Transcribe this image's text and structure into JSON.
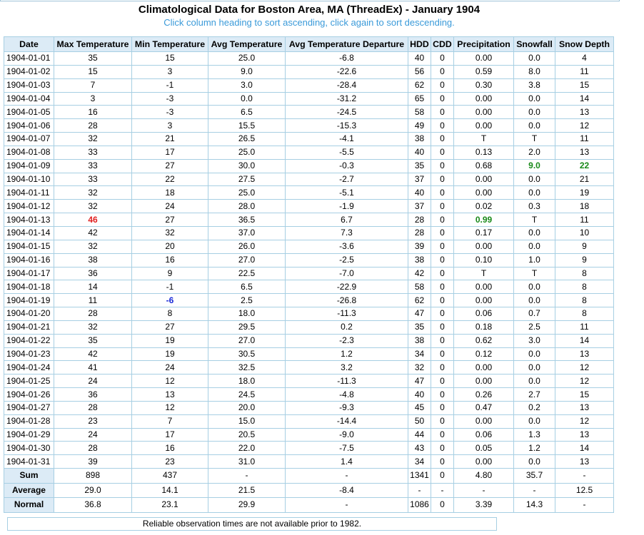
{
  "title": "Climatological Data for Boston Area, MA (ThreadEx) - January 1904",
  "subtitle": "Click column heading to sort ascending, click again to sort descending.",
  "columns": [
    "Date",
    "Max Temperature",
    "Min Temperature",
    "Avg Temperature",
    "Avg Temperature Departure",
    "HDD",
    "CDD",
    "Precipitation",
    "Snowfall",
    "Snow Depth"
  ],
  "rows": [
    [
      "1904-01-01",
      "35",
      "15",
      "25.0",
      "-6.8",
      "40",
      "0",
      "0.00",
      "0.0",
      "4"
    ],
    [
      "1904-01-02",
      "15",
      "3",
      "9.0",
      "-22.6",
      "56",
      "0",
      "0.59",
      "8.0",
      "11"
    ],
    [
      "1904-01-03",
      "7",
      "-1",
      "3.0",
      "-28.4",
      "62",
      "0",
      "0.30",
      "3.8",
      "15"
    ],
    [
      "1904-01-04",
      "3",
      "-3",
      "0.0",
      "-31.2",
      "65",
      "0",
      "0.00",
      "0.0",
      "14"
    ],
    [
      "1904-01-05",
      "16",
      "-3",
      "6.5",
      "-24.5",
      "58",
      "0",
      "0.00",
      "0.0",
      "13"
    ],
    [
      "1904-01-06",
      "28",
      "3",
      "15.5",
      "-15.3",
      "49",
      "0",
      "0.00",
      "0.0",
      "12"
    ],
    [
      "1904-01-07",
      "32",
      "21",
      "26.5",
      "-4.1",
      "38",
      "0",
      "T",
      "T",
      "11"
    ],
    [
      "1904-01-08",
      "33",
      "17",
      "25.0",
      "-5.5",
      "40",
      "0",
      "0.13",
      "2.0",
      "13"
    ],
    [
      "1904-01-09",
      "33",
      "27",
      "30.0",
      "-0.3",
      "35",
      "0",
      "0.68",
      "9.0",
      "22"
    ],
    [
      "1904-01-10",
      "33",
      "22",
      "27.5",
      "-2.7",
      "37",
      "0",
      "0.00",
      "0.0",
      "21"
    ],
    [
      "1904-01-11",
      "32",
      "18",
      "25.0",
      "-5.1",
      "40",
      "0",
      "0.00",
      "0.0",
      "19"
    ],
    [
      "1904-01-12",
      "32",
      "24",
      "28.0",
      "-1.9",
      "37",
      "0",
      "0.02",
      "0.3",
      "18"
    ],
    [
      "1904-01-13",
      "46",
      "27",
      "36.5",
      "6.7",
      "28",
      "0",
      "0.99",
      "T",
      "11"
    ],
    [
      "1904-01-14",
      "42",
      "32",
      "37.0",
      "7.3",
      "28",
      "0",
      "0.17",
      "0.0",
      "10"
    ],
    [
      "1904-01-15",
      "32",
      "20",
      "26.0",
      "-3.6",
      "39",
      "0",
      "0.00",
      "0.0",
      "9"
    ],
    [
      "1904-01-16",
      "38",
      "16",
      "27.0",
      "-2.5",
      "38",
      "0",
      "0.10",
      "1.0",
      "9"
    ],
    [
      "1904-01-17",
      "36",
      "9",
      "22.5",
      "-7.0",
      "42",
      "0",
      "T",
      "T",
      "8"
    ],
    [
      "1904-01-18",
      "14",
      "-1",
      "6.5",
      "-22.9",
      "58",
      "0",
      "0.00",
      "0.0",
      "8"
    ],
    [
      "1904-01-19",
      "11",
      "-6",
      "2.5",
      "-26.8",
      "62",
      "0",
      "0.00",
      "0.0",
      "8"
    ],
    [
      "1904-01-20",
      "28",
      "8",
      "18.0",
      "-11.3",
      "47",
      "0",
      "0.06",
      "0.7",
      "8"
    ],
    [
      "1904-01-21",
      "32",
      "27",
      "29.5",
      "0.2",
      "35",
      "0",
      "0.18",
      "2.5",
      "11"
    ],
    [
      "1904-01-22",
      "35",
      "19",
      "27.0",
      "-2.3",
      "38",
      "0",
      "0.62",
      "3.0",
      "14"
    ],
    [
      "1904-01-23",
      "42",
      "19",
      "30.5",
      "1.2",
      "34",
      "0",
      "0.12",
      "0.0",
      "13"
    ],
    [
      "1904-01-24",
      "41",
      "24",
      "32.5",
      "3.2",
      "32",
      "0",
      "0.00",
      "0.0",
      "12"
    ],
    [
      "1904-01-25",
      "24",
      "12",
      "18.0",
      "-11.3",
      "47",
      "0",
      "0.00",
      "0.0",
      "12"
    ],
    [
      "1904-01-26",
      "36",
      "13",
      "24.5",
      "-4.8",
      "40",
      "0",
      "0.26",
      "2.7",
      "15"
    ],
    [
      "1904-01-27",
      "28",
      "12",
      "20.0",
      "-9.3",
      "45",
      "0",
      "0.47",
      "0.2",
      "13"
    ],
    [
      "1904-01-28",
      "23",
      "7",
      "15.0",
      "-14.4",
      "50",
      "0",
      "0.00",
      "0.0",
      "12"
    ],
    [
      "1904-01-29",
      "24",
      "17",
      "20.5",
      "-9.0",
      "44",
      "0",
      "0.06",
      "1.3",
      "13"
    ],
    [
      "1904-01-30",
      "28",
      "16",
      "22.0",
      "-7.5",
      "43",
      "0",
      "0.05",
      "1.2",
      "14"
    ],
    [
      "1904-01-31",
      "39",
      "23",
      "31.0",
      "1.4",
      "34",
      "0",
      "0.00",
      "0.0",
      "13"
    ]
  ],
  "highlights": {
    "max_temp_high": {
      "row": 12,
      "col": 1,
      "color": "#e02020"
    },
    "min_temp_low": {
      "row": 18,
      "col": 2,
      "color": "#1a2ad8"
    },
    "snowfall_max": {
      "row": 8,
      "col": 8,
      "color": "#1a8a1a"
    },
    "snow_depth_max": {
      "row": 8,
      "col": 9,
      "color": "#1a8a1a"
    },
    "precip_max": {
      "row": 12,
      "col": 7,
      "color": "#1a8a1a"
    }
  },
  "summary": [
    [
      "Sum",
      "898",
      "437",
      "-",
      "-",
      "1341",
      "0",
      "4.80",
      "35.7",
      "-"
    ],
    [
      "Average",
      "29.0",
      "14.1",
      "21.5",
      "-8.4",
      "-",
      "-",
      "-",
      "-",
      "12.5"
    ],
    [
      "Normal",
      "36.8",
      "23.1",
      "29.9",
      "-",
      "1086",
      "0",
      "3.39",
      "14.3",
      "-"
    ]
  ],
  "footnote": "Reliable observation times are not available prior to 1982."
}
